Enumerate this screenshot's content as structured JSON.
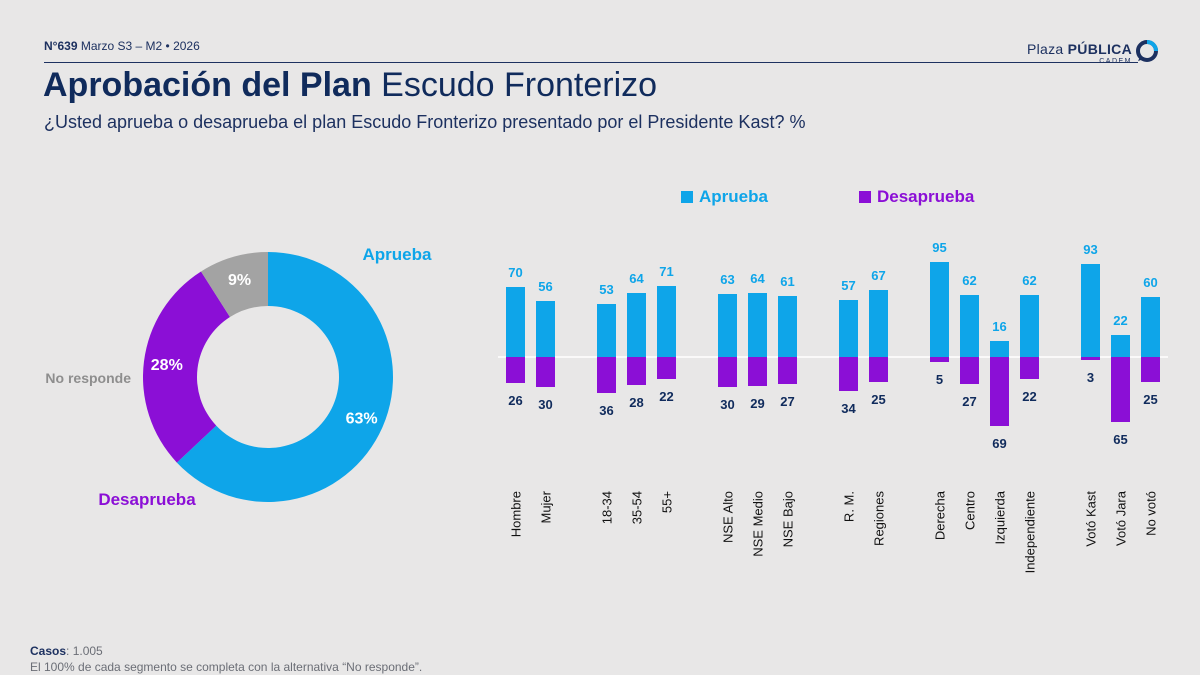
{
  "header": {
    "issue": "N°639",
    "date": "Marzo S3 – M2 • 2026",
    "logo_plaza": "Plaza",
    "logo_publica": "PÚBLICA",
    "logo_sub": "CADEM"
  },
  "title": {
    "bold": "Aprobación del Plan",
    "regular": "Escudo Fronterizo"
  },
  "subtitle": "¿Usted aprueba o desaprueba el plan Escudo Fronterizo presentado por el Presidente Kast? %",
  "footer": {
    "cases_label": "Casos",
    "cases_value": ": 1.005",
    "note": "El 100% de cada segmento se completa con la alternativa “No responde”."
  },
  "colors": {
    "aprueba": "#0ea5e9",
    "desaprueba": "#8b0fd6",
    "no_responde": "#a3a3a3",
    "navy": "#102b5c"
  },
  "chart_data": [
    {
      "type": "pie",
      "donut": true,
      "slices": [
        {
          "label": "Aprueba",
          "value": 63,
          "value_label": "63%"
        },
        {
          "label": "Desaprueba",
          "value": 28,
          "value_label": "28%"
        },
        {
          "label": "No responde",
          "value": 9,
          "value_label": "9%"
        }
      ]
    },
    {
      "type": "bar",
      "legend": [
        "Aprueba",
        "Desaprueba"
      ],
      "categories": [
        "Hombre",
        "Mujer",
        "18-34",
        "35-54",
        "55+",
        "NSE Alto",
        "NSE Medio",
        "NSE Bajo",
        "R. M.",
        "Regiones",
        "Derecha",
        "Centro",
        "Izquierda",
        "Independiente",
        "Votó Kast",
        "Votó Jara",
        "No votó"
      ],
      "groups": [
        [
          0,
          1
        ],
        [
          2,
          3,
          4
        ],
        [
          5,
          6,
          7
        ],
        [
          8,
          9
        ],
        [
          10,
          11,
          12,
          13
        ],
        [
          14,
          15,
          16
        ]
      ],
      "series": [
        {
          "name": "Aprueba",
          "values": [
            70,
            56,
            53,
            64,
            71,
            63,
            64,
            61,
            57,
            67,
            95,
            62,
            16,
            62,
            93,
            22,
            60
          ]
        },
        {
          "name": "Desaprueba",
          "values": [
            26,
            30,
            36,
            28,
            22,
            30,
            29,
            27,
            34,
            25,
            5,
            27,
            69,
            22,
            3,
            65,
            25
          ]
        }
      ]
    }
  ]
}
